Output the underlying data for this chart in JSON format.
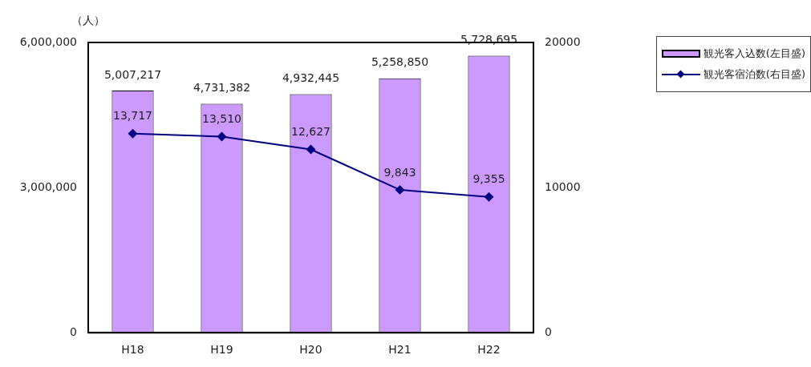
{
  "chart_data": {
    "type": "bar",
    "ylabel": "（人）",
    "categories": [
      "H18",
      "H19",
      "H20",
      "H21",
      "H22"
    ],
    "series": [
      {
        "name": "観光客入込数(左目盛)",
        "color": "#cc99ff",
        "values": [
          5007217,
          4731382,
          4932445,
          5258850,
          5728695
        ],
        "value_labels": [
          "5,007,217",
          "4,731,382",
          "4,932,445",
          "5,258,850",
          "5,728,695"
        ]
      },
      {
        "name": "観光客宿泊数(右目盛)",
        "type": "line",
        "axis": "y2",
        "color": "#000080",
        "marker": "diamond",
        "values": [
          13717,
          13510,
          12627,
          9843,
          9355
        ],
        "value_labels": [
          "13,717",
          "13,510",
          "12,627",
          "9,843",
          "9,355"
        ]
      }
    ],
    "ylim": [
      0,
      6000000
    ],
    "yticks": [
      0,
      {
        "value": 3000000,
        "label": "3,000,000"
      },
      {
        "value": 6000000,
        "label": "6,000,000"
      }
    ],
    "y2lim": [
      0,
      20000
    ],
    "y2ticks": [
      0,
      10000,
      20000
    ],
    "grid": false,
    "legend": "top right"
  }
}
